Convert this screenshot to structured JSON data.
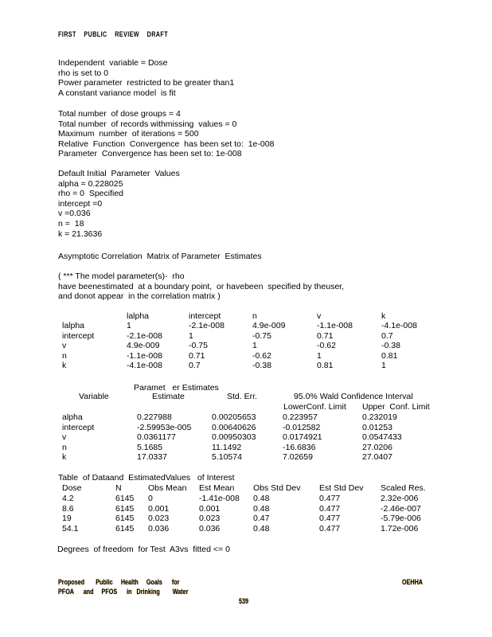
{
  "header": {
    "text": "FIRST    PUBLIC    REVIEW    DRAFT"
  },
  "intro": [
    "Independent  variable = Dose",
    "rho is set to 0",
    "Power parameter  restricted to be greater than1",
    "A constant variance model  is fit"
  ],
  "settings": [
    "Total number  of dose groups = 4",
    "Total number  of records withmissing  values = 0",
    "Maximum  number  of iterations = 500",
    "Relative  Function  Convergence  has been set to:  1e-008",
    "Parameter  Convergence has been set to: 1e-008"
  ],
  "initial": [
    "Default Initial  Parameter  Values",
    "alpha = 0.228025",
    "rho = 0  Specified",
    "intercept =0",
    "v =0.036",
    "n =  18",
    "k = 21.3636"
  ],
  "correlation": {
    "title": "Asymptotic Correlation  Matrix of Parameter  Estimates",
    "note": [
      "( *** The model parameter(s)-  rho",
      "have beenestimated  at a boundary point,  or havebeen  specified by theuser,",
      "and donot appear  in the correlation matrix )"
    ],
    "columns": [
      "lalpha",
      "intercept",
      "n",
      "v",
      "k"
    ],
    "rows": [
      [
        "lalpha",
        "1",
        "-2.1e-008",
        "4.9e-009",
        "-1.1e-008",
        "-4.1e-008"
      ],
      [
        "intercept",
        "-2.1e-008",
        "1",
        "-0.75",
        "0.71",
        "0.7"
      ],
      [
        "v",
        "4.9e-009",
        "-0.75",
        "1",
        "-0.62",
        "-0.38"
      ],
      [
        "n",
        "-1.1e-008",
        "0.71",
        "-0.62",
        "1",
        "0.81"
      ],
      [
        "k",
        "-4.1e-008",
        "0.7",
        "-0.38",
        "0.81",
        "1"
      ]
    ]
  },
  "estimates": {
    "title": "Paramet   er Estimates",
    "col_variable": "Variable",
    "col_estimate": "Estimate",
    "col_stderr": "Std. Err.",
    "col_interval": "95.0% Wald Confidence Interval",
    "col_lower": "LowerConf. Limit",
    "col_upper": "Upper  Conf. Limit",
    "rows": [
      [
        "alpha",
        "0.227988",
        "0.00205653",
        "0.223957",
        "0.232019"
      ],
      [
        "intercept",
        "-2.59953e-005",
        "0.00640626",
        "-0.012582",
        "0.01253"
      ],
      [
        "v",
        "0.0361177",
        "0.00950303",
        "0.0174921",
        "0.0547433"
      ],
      [
        "n",
        "5.1685",
        "11.1492",
        "-16.6836",
        "27.0206"
      ],
      [
        "k",
        "17.0337",
        "5.10574",
        "7.02659",
        "27.0407"
      ]
    ]
  },
  "datatable": {
    "title": "Table  of Dataand  EstimatedValues   of Interest",
    "columns": [
      "Dose",
      "N",
      "Obs Mean",
      "Est Mean",
      "Obs Std Dev",
      "Est Std Dev",
      "Scaled Res."
    ],
    "rows": [
      [
        "4.2",
        "6145",
        "0",
        "-1.41e-008",
        "0.48",
        "0.477",
        "2.32e-006"
      ],
      [
        "8.6",
        "6145",
        "0.001",
        "0.001",
        "0.48",
        "0.477",
        "-2.46e-007"
      ],
      [
        "19",
        "6145",
        "0.023",
        "0.023",
        "0.47",
        "0.477",
        "-5.79e-006"
      ],
      [
        "54.1",
        "6145",
        "0.036",
        "0.036",
        "0.48",
        "0.477",
        "1.72e-006"
      ]
    ]
  },
  "dof": "Degrees  of freedom  for Test  A3vs  fitted <= 0",
  "footer": {
    "left1": "Proposed       Public     Health     Goals      for",
    "left2": "PFOA      and     PFOS      in   Drinking        Water",
    "right": "OEHHA",
    "page": "539"
  }
}
